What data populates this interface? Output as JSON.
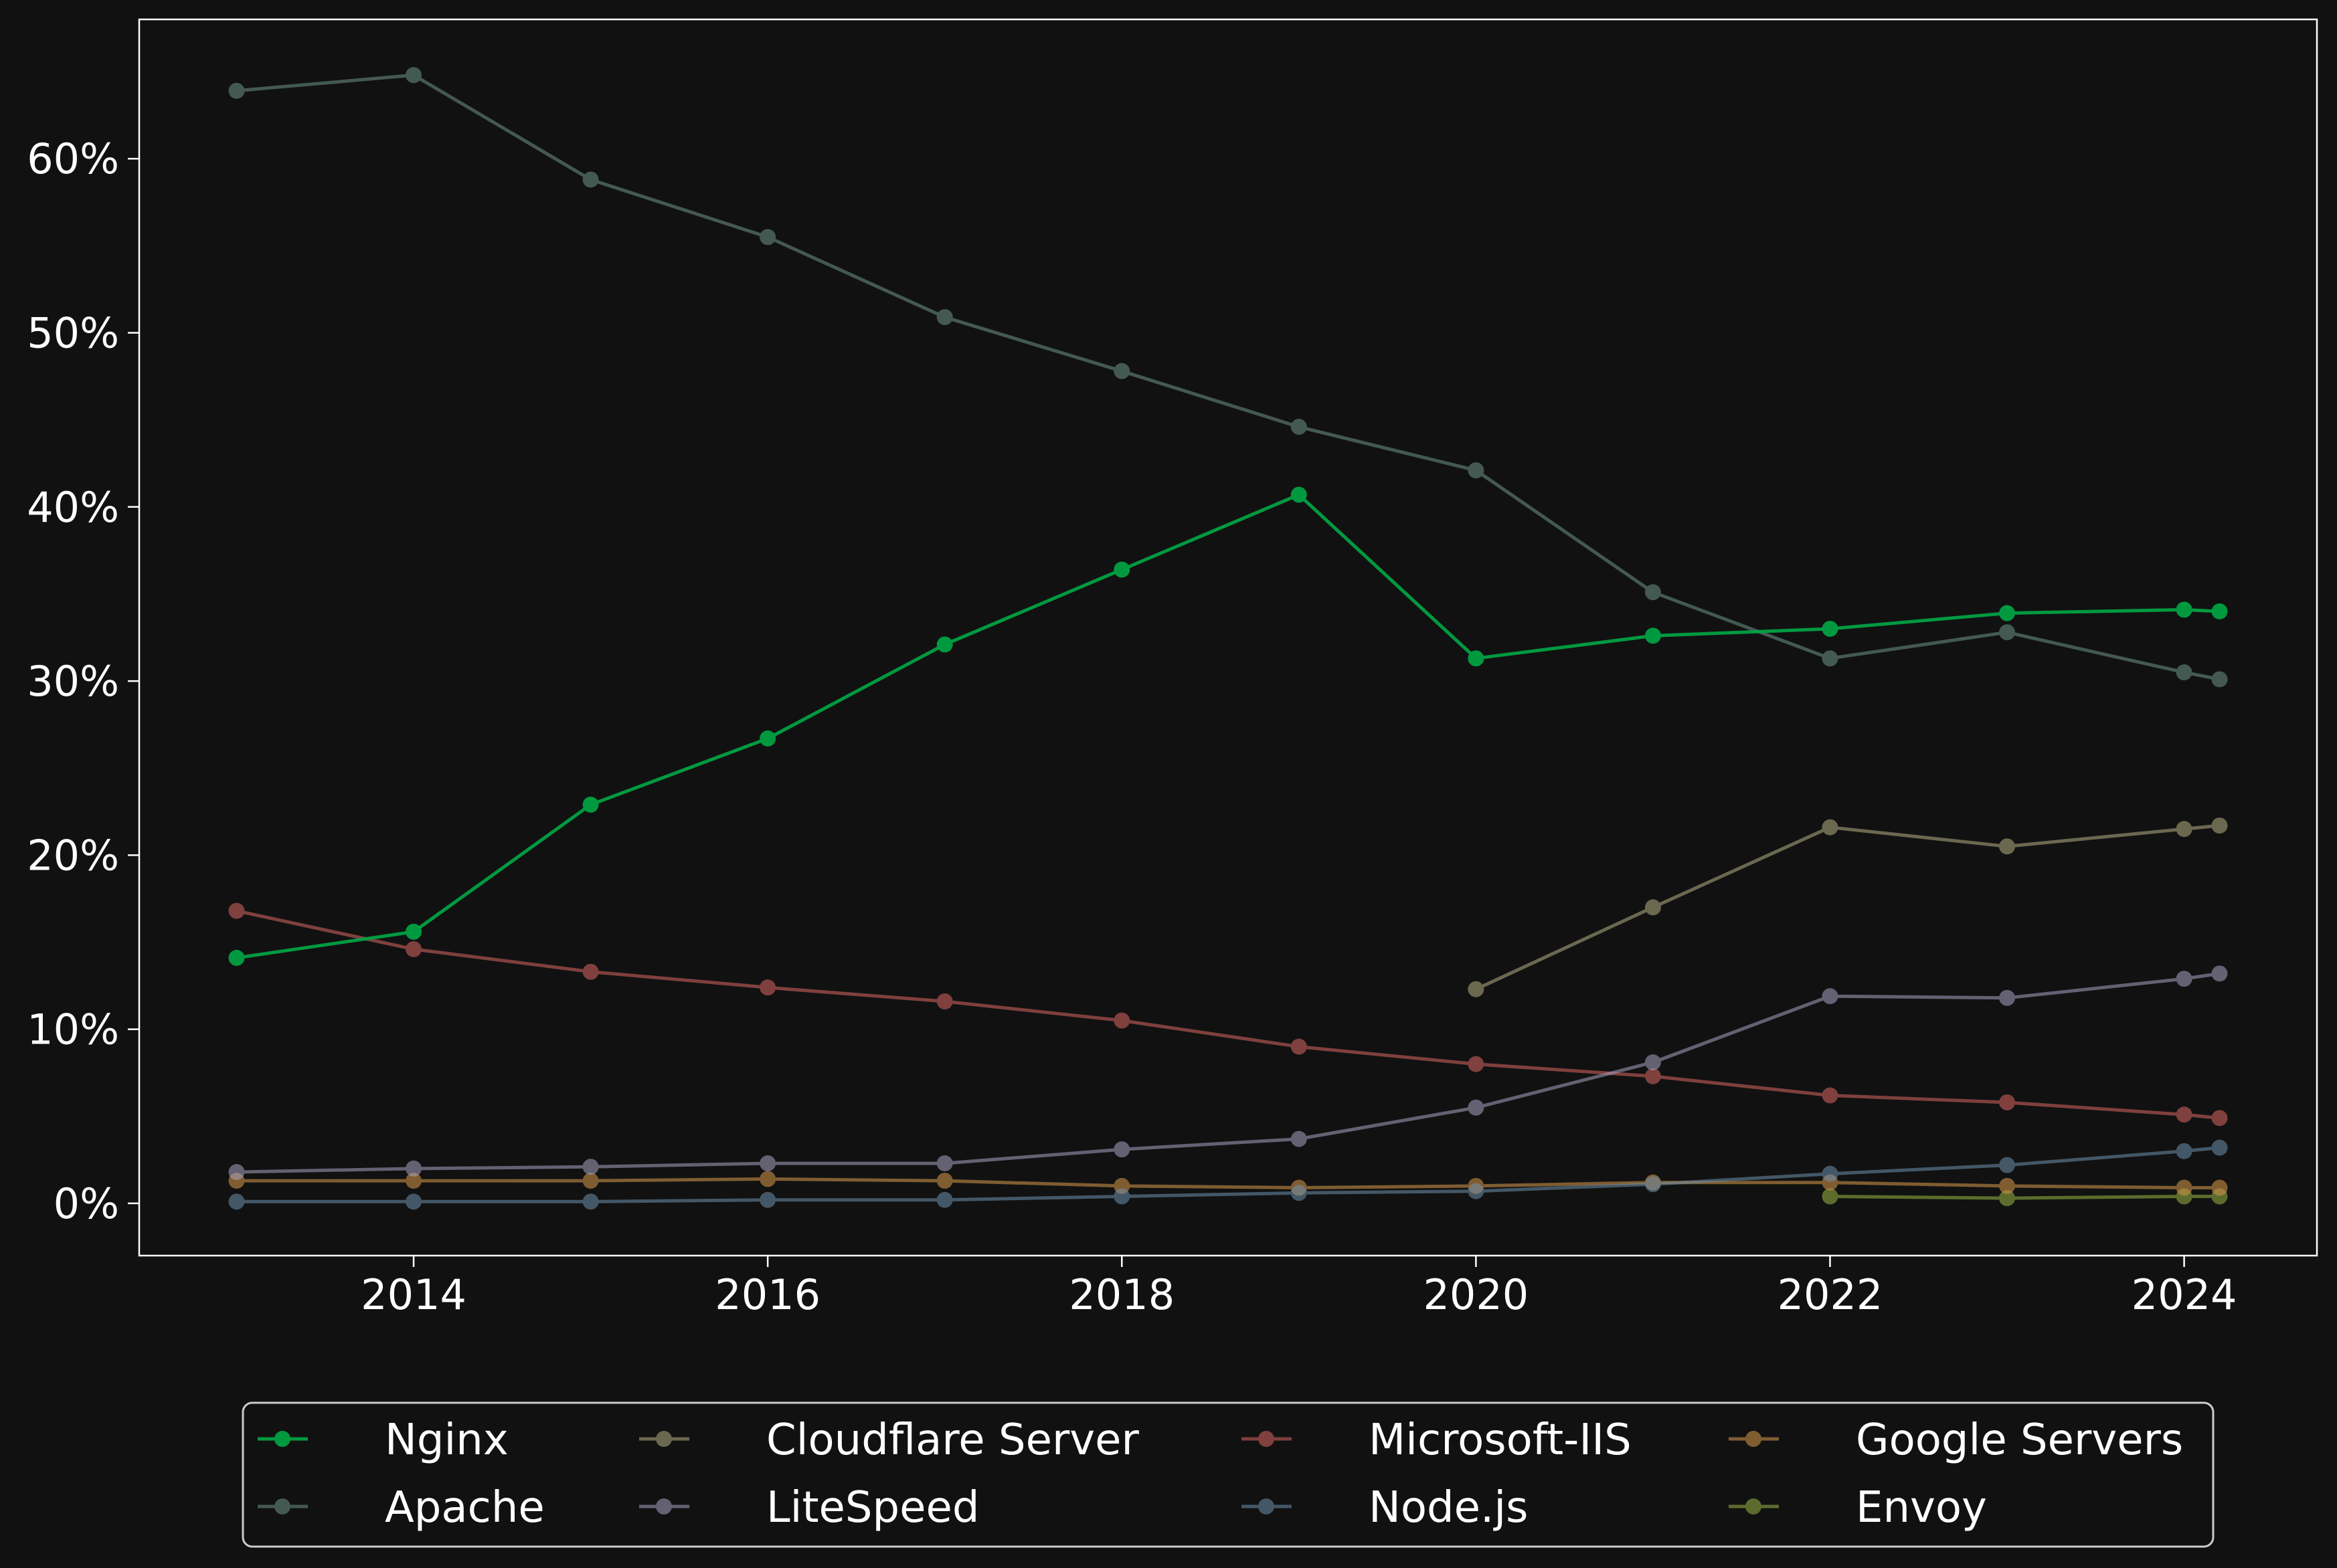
{
  "chart_data": {
    "type": "line",
    "title": "",
    "xlabel": "",
    "ylabel": "",
    "xlim": [
      2012.45,
      2024.75
    ],
    "ylim": [
      -3,
      68
    ],
    "x_ticks": [
      2014,
      2016,
      2018,
      2020,
      2022,
      2024
    ],
    "x_tick_labels": [
      "2014",
      "2016",
      "2018",
      "2020",
      "2022",
      "2024"
    ],
    "y_ticks": [
      0,
      10,
      20,
      30,
      40,
      50,
      60
    ],
    "y_tick_labels": [
      "0%",
      "10%",
      "20%",
      "30%",
      "40%",
      "50%",
      "60%"
    ],
    "grid": false,
    "legend_position": "bottom-center",
    "legend_columns": 4,
    "series": [
      {
        "name": "Nginx",
        "color": "#00a846",
        "alpha": 0.9,
        "x": [
          2013,
          2014,
          2015,
          2016,
          2017,
          2018,
          2019,
          2020,
          2021,
          2022,
          2023,
          2024,
          2024.2
        ],
        "y": [
          14.1,
          15.6,
          22.9,
          26.7,
          32.1,
          36.4,
          40.7,
          31.3,
          32.6,
          33.0,
          33.9,
          34.1,
          34.0
        ]
      },
      {
        "name": "Apache",
        "color": "#6e9488",
        "alpha": 0.55,
        "x": [
          2013,
          2014,
          2015,
          2016,
          2017,
          2018,
          2019,
          2020,
          2021,
          2022,
          2023,
          2024,
          2024.2
        ],
        "y": [
          63.9,
          64.8,
          58.8,
          55.5,
          50.9,
          47.8,
          44.6,
          42.1,
          35.1,
          31.3,
          32.8,
          30.5,
          30.1
        ]
      },
      {
        "name": "Cloudflare Server",
        "color": "#b5b085",
        "alpha": 0.55,
        "x": [
          2020,
          2021,
          2022,
          2023,
          2024,
          2024.2
        ],
        "y": [
          12.3,
          17.0,
          21.6,
          20.5,
          21.5,
          21.7
        ]
      },
      {
        "name": "LiteSpeed",
        "color": "#a8a3c2",
        "alpha": 0.55,
        "x": [
          2013,
          2014,
          2015,
          2016,
          2017,
          2018,
          2019,
          2020,
          2021,
          2022,
          2023,
          2024,
          2024.2
        ],
        "y": [
          1.8,
          2.0,
          2.1,
          2.3,
          2.3,
          3.1,
          3.7,
          5.5,
          8.1,
          11.9,
          11.8,
          12.9,
          13.2
        ]
      },
      {
        "name": "Microsoft-IIS",
        "color": "#c8605c",
        "alpha": 0.6,
        "x": [
          2013,
          2014,
          2015,
          2016,
          2017,
          2018,
          2019,
          2020,
          2021,
          2022,
          2023,
          2024,
          2024.2
        ],
        "y": [
          16.8,
          14.6,
          13.3,
          12.4,
          11.6,
          10.5,
          9.0,
          8.0,
          7.3,
          6.2,
          5.8,
          5.1,
          4.9
        ]
      },
      {
        "name": "Node.js",
        "color": "#6f91ad",
        "alpha": 0.55,
        "x": [
          2013,
          2014,
          2015,
          2016,
          2017,
          2018,
          2019,
          2020,
          2021,
          2022,
          2023,
          2024,
          2024.2
        ],
        "y": [
          0.1,
          0.1,
          0.1,
          0.2,
          0.2,
          0.4,
          0.6,
          0.7,
          1.1,
          1.7,
          2.2,
          3.0,
          3.2
        ]
      },
      {
        "name": "Google Servers",
        "color": "#c99047",
        "alpha": 0.6,
        "x": [
          2013,
          2014,
          2015,
          2016,
          2017,
          2018,
          2019,
          2020,
          2021,
          2022,
          2023,
          2024,
          2024.2
        ],
        "y": [
          1.3,
          1.3,
          1.3,
          1.4,
          1.3,
          1.0,
          0.9,
          1.0,
          1.2,
          1.2,
          1.0,
          0.9,
          0.9
        ]
      },
      {
        "name": "Envoy",
        "color": "#9bb844",
        "alpha": 0.55,
        "x": [
          2022,
          2023,
          2024,
          2024.2
        ],
        "y": [
          0.4,
          0.3,
          0.4,
          0.4
        ]
      }
    ]
  }
}
